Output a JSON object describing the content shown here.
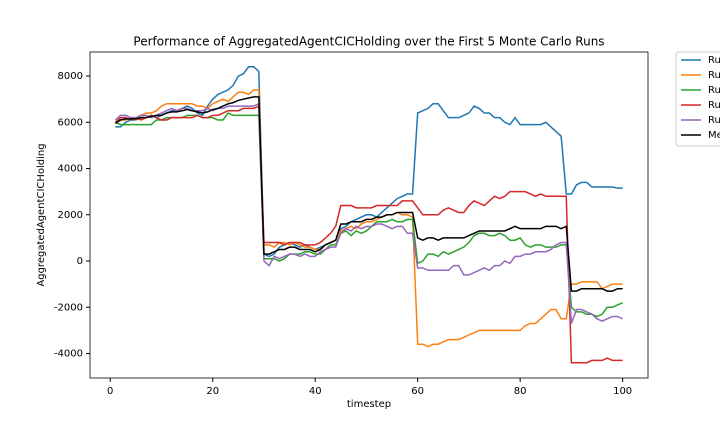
{
  "chart_data": {
    "type": "line",
    "title": "Performance of AggregatedAgentCICHolding over the First 5 Monte Carlo Runs",
    "x_label": "timestep",
    "y_label": "AggregatedAgentCICHolding",
    "x": [
      1,
      2,
      3,
      4,
      5,
      6,
      7,
      8,
      9,
      10,
      11,
      12,
      13,
      14,
      15,
      16,
      17,
      18,
      19,
      20,
      21,
      22,
      23,
      24,
      25,
      26,
      27,
      28,
      29,
      30,
      31,
      32,
      33,
      34,
      35,
      36,
      37,
      38,
      39,
      40,
      41,
      42,
      43,
      44,
      45,
      46,
      47,
      48,
      49,
      50,
      51,
      52,
      53,
      54,
      55,
      56,
      57,
      58,
      59,
      60,
      61,
      62,
      63,
      64,
      65,
      66,
      67,
      68,
      69,
      70,
      71,
      72,
      73,
      74,
      75,
      76,
      77,
      78,
      79,
      80,
      81,
      82,
      83,
      84,
      85,
      86,
      87,
      88,
      89,
      90,
      91,
      92,
      93,
      94,
      95,
      96,
      97,
      98,
      99,
      100
    ],
    "xlim": [
      -3.95,
      104.95
    ],
    "xticks": [
      0,
      20,
      40,
      60,
      80,
      100
    ],
    "ylim": [
      -5060,
      9040
    ],
    "yticks": [
      -4000,
      -2000,
      0,
      2000,
      4000,
      6000,
      8000
    ],
    "grid": false,
    "legend": "outside upper right",
    "series": [
      {
        "name": "Ru",
        "color": "#1f77b4",
        "values": [
          5800,
          5800,
          6000,
          6100,
          6100,
          6200,
          6200,
          6300,
          6200,
          6300,
          6400,
          6500,
          6500,
          6600,
          6700,
          6600,
          6400,
          6300,
          6700,
          7000,
          7200,
          7300,
          7400,
          7600,
          8000,
          8100,
          8400,
          8400,
          8200,
          300,
          200,
          300,
          600,
          700,
          800,
          700,
          600,
          700,
          600,
          500,
          600,
          700,
          800,
          900,
          1400,
          1500,
          1700,
          1800,
          1900,
          2000,
          2000,
          1900,
          2100,
          2300,
          2500,
          2700,
          2800,
          2900,
          2900,
          6400,
          6500,
          6600,
          6800,
          6800,
          6500,
          6200,
          6200,
          6200,
          6300,
          6400,
          6700,
          6600,
          6400,
          6400,
          6200,
          6200,
          6000,
          5900,
          6200,
          5900,
          5900,
          5900,
          5900,
          5900,
          6000,
          5800,
          5600,
          5400,
          2900,
          2900,
          3300,
          3400,
          3400,
          3200,
          3200,
          3200,
          3200,
          3200,
          3150,
          3150
        ]
      },
      {
        "name": "Ru",
        "color": "#ff7f0e",
        "values": [
          6000,
          6100,
          6100,
          6200,
          6100,
          6300,
          6400,
          6400,
          6500,
          6700,
          6800,
          6800,
          6800,
          6800,
          6800,
          6800,
          6700,
          6700,
          6600,
          6800,
          6900,
          7000,
          6900,
          7100,
          7300,
          7300,
          7200,
          7400,
          7400,
          700,
          700,
          600,
          800,
          800,
          700,
          800,
          700,
          600,
          600,
          500,
          500,
          700,
          800,
          900,
          1300,
          1400,
          1500,
          1400,
          1600,
          1700,
          1700,
          1800,
          1900,
          2000,
          2000,
          2100,
          2000,
          2000,
          1900,
          -3600,
          -3600,
          -3700,
          -3600,
          -3600,
          -3500,
          -3400,
          -3400,
          -3400,
          -3300,
          -3200,
          -3100,
          -3000,
          -3000,
          -3000,
          -3000,
          -3000,
          -3000,
          -3000,
          -3000,
          -3000,
          -2800,
          -2700,
          -2700,
          -2500,
          -2300,
          -2100,
          -2100,
          -2500,
          -2500,
          -1000,
          -1000,
          -900,
          -900,
          -900,
          -900,
          -1200,
          -1100,
          -1000,
          -1000,
          -1000
        ]
      },
      {
        "name": "Ru",
        "color": "#2ca02c",
        "values": [
          6000,
          5900,
          5900,
          5900,
          5900,
          5900,
          5900,
          5900,
          6100,
          6100,
          6200,
          6200,
          6200,
          6200,
          6300,
          6300,
          6300,
          6200,
          6200,
          6200,
          6100,
          6100,
          6400,
          6300,
          6300,
          6300,
          6300,
          6300,
          6300,
          100,
          100,
          100,
          0,
          100,
          300,
          300,
          300,
          400,
          400,
          300,
          300,
          500,
          700,
          700,
          1200,
          1300,
          1100,
          1300,
          1200,
          1300,
          1500,
          1700,
          1700,
          1700,
          1800,
          1700,
          1700,
          1800,
          1800,
          -100,
          0,
          300,
          300,
          200,
          400,
          300,
          400,
          500,
          600,
          800,
          1100,
          1200,
          1200,
          1100,
          1100,
          1200,
          1100,
          900,
          900,
          1000,
          700,
          600,
          700,
          700,
          600,
          600,
          600,
          700,
          700,
          -2000,
          -2200,
          -2200,
          -2300,
          -2300,
          -2400,
          -2300,
          -2000,
          -2000,
          -1900,
          -1800
        ]
      },
      {
        "name": "Ru",
        "color": "#d62728",
        "values": [
          6000,
          6200,
          6200,
          6100,
          6200,
          6100,
          6200,
          6300,
          6200,
          6100,
          6100,
          6200,
          6200,
          6200,
          6200,
          6200,
          6300,
          6200,
          6200,
          6300,
          6300,
          6400,
          6500,
          6500,
          6500,
          6600,
          6600,
          6600,
          6700,
          800,
          800,
          800,
          800,
          700,
          800,
          800,
          800,
          700,
          700,
          700,
          800,
          1000,
          1200,
          1500,
          2400,
          2400,
          2400,
          2300,
          2300,
          2300,
          2300,
          2400,
          2400,
          2400,
          2400,
          2400,
          2600,
          2600,
          2600,
          2300,
          2000,
          2000,
          2000,
          2000,
          2200,
          2300,
          2200,
          2100,
          2100,
          2400,
          2600,
          2500,
          2400,
          2600,
          2800,
          2700,
          2800,
          3000,
          3000,
          3000,
          3000,
          2900,
          2800,
          2900,
          2800,
          2800,
          2800,
          2800,
          2800,
          -4400,
          -4400,
          -4400,
          -4400,
          -4300,
          -4300,
          -4300,
          -4200,
          -4300,
          -4300,
          -4300
        ]
      },
      {
        "name": "Ru",
        "color": "#9467bd",
        "values": [
          6100,
          6300,
          6300,
          6200,
          6200,
          6300,
          6300,
          6200,
          6300,
          6400,
          6500,
          6600,
          6500,
          6600,
          6600,
          6500,
          6500,
          6500,
          6600,
          6500,
          6600,
          6600,
          6700,
          6700,
          6700,
          6700,
          6700,
          6700,
          6800,
          0,
          -200,
          200,
          100,
          200,
          300,
          300,
          200,
          300,
          200,
          200,
          400,
          500,
          600,
          600,
          1200,
          1400,
          1300,
          1500,
          1400,
          1500,
          1500,
          1600,
          1600,
          1500,
          1400,
          1500,
          1500,
          1200,
          1200,
          -300,
          -300,
          -400,
          -400,
          -400,
          -400,
          -400,
          -200,
          -200,
          -600,
          -600,
          -500,
          -400,
          -300,
          -400,
          -200,
          -200,
          0,
          -100,
          200,
          200,
          300,
          300,
          400,
          400,
          400,
          500,
          700,
          800,
          800,
          -2700,
          -2100,
          -2100,
          -2200,
          -2300,
          -2500,
          -2600,
          -2500,
          -2400,
          -2400,
          -2500
        ]
      },
      {
        "name": "Me",
        "color": "#000000",
        "values": [
          5950,
          6100,
          6150,
          6150,
          6150,
          6200,
          6200,
          6250,
          6300,
          6300,
          6400,
          6450,
          6450,
          6500,
          6550,
          6500,
          6450,
          6400,
          6450,
          6550,
          6600,
          6700,
          6800,
          6850,
          6950,
          7000,
          7050,
          7100,
          7100,
          300,
          300,
          400,
          500,
          500,
          600,
          600,
          500,
          500,
          500,
          400,
          500,
          700,
          800,
          900,
          1600,
          1600,
          1700,
          1700,
          1700,
          1800,
          1800,
          1900,
          1900,
          2000,
          2000,
          2100,
          2100,
          2100,
          2100,
          1000,
          900,
          1000,
          1000,
          900,
          1000,
          1000,
          1000,
          1000,
          1000,
          1100,
          1200,
          1300,
          1300,
          1300,
          1300,
          1300,
          1300,
          1400,
          1500,
          1400,
          1400,
          1400,
          1400,
          1400,
          1500,
          1500,
          1500,
          1400,
          1500,
          -1300,
          -1300,
          -1200,
          -1200,
          -1200,
          -1200,
          -1200,
          -1300,
          -1300,
          -1200,
          -1200
        ]
      }
    ]
  }
}
